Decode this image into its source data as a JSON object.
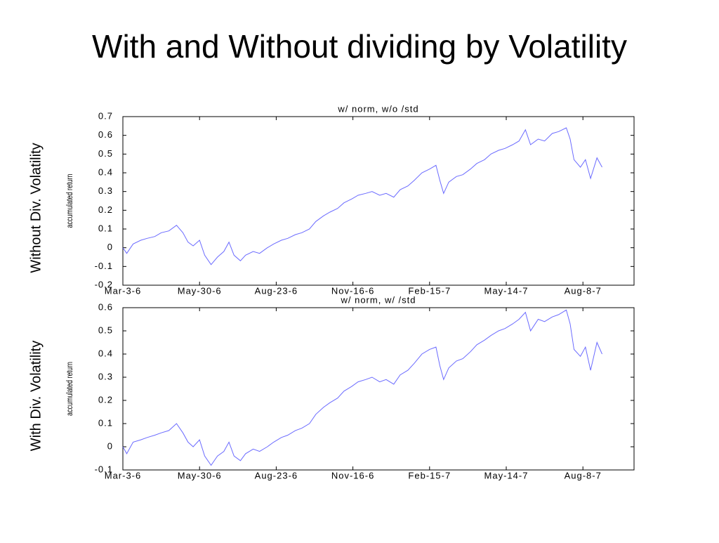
{
  "title": "With and Without dividing by Volatility",
  "chart_data": [
    {
      "type": "line",
      "title": "w/ norm, w/o /std",
      "panel_label": "Without Div. Volatility",
      "ylabel": "accumulated return",
      "xlim": [
        0,
        400
      ],
      "ylim": [
        -0.2,
        0.7
      ],
      "xticks": [
        {
          "value": 0,
          "label": "Mar-3-6"
        },
        {
          "value": 60,
          "label": "May-30-6"
        },
        {
          "value": 120,
          "label": "Aug-23-6"
        },
        {
          "value": 180,
          "label": "Nov-16-6"
        },
        {
          "value": 240,
          "label": "Feb-15-7"
        },
        {
          "value": 300,
          "label": "May-14-7"
        },
        {
          "value": 360,
          "label": "Aug-8-7"
        }
      ],
      "yticks": [
        -0.2,
        -0.1,
        0,
        0.1,
        0.2,
        0.3,
        0.4,
        0.5,
        0.6,
        0.7
      ],
      "x": [
        0,
        3,
        8,
        14,
        19,
        25,
        30,
        36,
        42,
        47,
        51,
        55,
        60,
        64,
        69,
        74,
        79,
        83,
        87,
        92,
        96,
        102,
        107,
        113,
        118,
        124,
        129,
        135,
        140,
        146,
        151,
        157,
        162,
        168,
        173,
        179,
        184,
        190,
        195,
        201,
        206,
        212,
        217,
        223,
        228,
        234,
        240,
        245,
        248,
        251,
        255,
        261,
        266,
        272,
        277,
        283,
        288,
        294,
        299,
        305,
        310,
        315,
        319,
        325,
        330,
        336,
        341,
        347,
        350,
        353,
        358,
        362,
        366,
        371,
        375
      ],
      "series": [
        {
          "name": "accumulated return",
          "color": "#6b6bff",
          "values": [
            0,
            -0.03,
            0.02,
            0.04,
            0.05,
            0.06,
            0.08,
            0.09,
            0.12,
            0.08,
            0.03,
            0.01,
            0.04,
            -0.04,
            -0.09,
            -0.05,
            -0.02,
            0.03,
            -0.04,
            -0.07,
            -0.04,
            -0.02,
            -0.03,
            0.0,
            0.02,
            0.04,
            0.05,
            0.07,
            0.08,
            0.1,
            0.14,
            0.17,
            0.19,
            0.21,
            0.24,
            0.26,
            0.28,
            0.29,
            0.3,
            0.28,
            0.29,
            0.27,
            0.31,
            0.33,
            0.36,
            0.4,
            0.42,
            0.44,
            0.36,
            0.29,
            0.35,
            0.38,
            0.39,
            0.42,
            0.45,
            0.47,
            0.5,
            0.52,
            0.53,
            0.55,
            0.57,
            0.63,
            0.55,
            0.58,
            0.57,
            0.61,
            0.62,
            0.64,
            0.58,
            0.47,
            0.43,
            0.47,
            0.37,
            0.48,
            0.43
          ]
        }
      ]
    },
    {
      "type": "line",
      "title": "w/ norm, w/ /std",
      "panel_label": "With Div. Volatility",
      "ylabel": "accumulated return",
      "xlim": [
        0,
        400
      ],
      "ylim": [
        -0.1,
        0.6
      ],
      "xticks": [
        {
          "value": 0,
          "label": "Mar-3-6"
        },
        {
          "value": 60,
          "label": "May-30-6"
        },
        {
          "value": 120,
          "label": "Aug-23-6"
        },
        {
          "value": 180,
          "label": "Nov-16-6"
        },
        {
          "value": 240,
          "label": "Feb-15-7"
        },
        {
          "value": 300,
          "label": "May-14-7"
        },
        {
          "value": 360,
          "label": "Aug-8-7"
        }
      ],
      "yticks": [
        -0.1,
        0,
        0.1,
        0.2,
        0.3,
        0.4,
        0.5,
        0.6
      ],
      "x": [
        0,
        3,
        8,
        14,
        19,
        25,
        30,
        36,
        42,
        47,
        51,
        55,
        60,
        64,
        69,
        74,
        79,
        83,
        87,
        92,
        96,
        102,
        107,
        113,
        118,
        124,
        129,
        135,
        140,
        146,
        151,
        157,
        162,
        168,
        173,
        179,
        184,
        190,
        195,
        201,
        206,
        212,
        217,
        223,
        228,
        234,
        240,
        245,
        248,
        251,
        255,
        261,
        266,
        272,
        277,
        283,
        288,
        294,
        299,
        305,
        310,
        315,
        319,
        325,
        330,
        336,
        341,
        347,
        350,
        353,
        358,
        362,
        366,
        371,
        375
      ],
      "series": [
        {
          "name": "accumulated return",
          "color": "#6b6bff",
          "values": [
            0,
            -0.03,
            0.02,
            0.03,
            0.04,
            0.05,
            0.06,
            0.07,
            0.1,
            0.06,
            0.02,
            0.0,
            0.03,
            -0.04,
            -0.08,
            -0.04,
            -0.02,
            0.02,
            -0.04,
            -0.06,
            -0.03,
            -0.01,
            -0.02,
            0.0,
            0.02,
            0.04,
            0.05,
            0.07,
            0.08,
            0.1,
            0.14,
            0.17,
            0.19,
            0.21,
            0.24,
            0.26,
            0.28,
            0.29,
            0.3,
            0.28,
            0.29,
            0.27,
            0.31,
            0.33,
            0.36,
            0.4,
            0.42,
            0.43,
            0.35,
            0.29,
            0.34,
            0.37,
            0.38,
            0.41,
            0.44,
            0.46,
            0.48,
            0.5,
            0.51,
            0.53,
            0.55,
            0.58,
            0.5,
            0.55,
            0.54,
            0.56,
            0.57,
            0.59,
            0.53,
            0.42,
            0.39,
            0.43,
            0.33,
            0.45,
            0.4
          ]
        }
      ]
    }
  ]
}
